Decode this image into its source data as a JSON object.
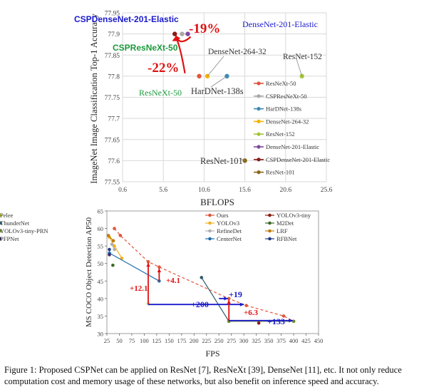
{
  "caption": "Figure 1: Proposed CSPNet can be applied on ResNet [7], ResNeXt [39], DenseNet [11], etc. It not only reduce computation cost and memory usage of these networks, but also benefit on inference speed and accuracy.",
  "chart_data": [
    {
      "type": "scatter",
      "title": "",
      "xlabel": "BFLOPS",
      "ylabel": "ImageNet Image Classification Top-1 Accuracy",
      "xlim": [
        0.6,
        25.6
      ],
      "ylim": [
        77.55,
        77.95
      ],
      "xticks": [
        "0.6",
        "5.6",
        "10.6",
        "15.6",
        "20.6",
        "25.6"
      ],
      "yticks": [
        "77.95",
        "77.9",
        "77.85",
        "77.8",
        "77.75",
        "77.7",
        "77.65",
        "77.6",
        "77.55"
      ],
      "grid": true,
      "legend_position": "right",
      "series": [
        {
          "name": "ResNeXt-50",
          "color": "#e0553b",
          "x": 10.0,
          "y": 77.8
        },
        {
          "name": "CSPResNeXt-50",
          "color": "#a8a8a8",
          "x": 7.9,
          "y": 77.9
        },
        {
          "name": "HarDNet-138s",
          "color": "#3b8bb5",
          "x": 13.4,
          "y": 77.8
        },
        {
          "name": "DenseNet-264-32",
          "color": "#f5b400",
          "x": 11.0,
          "y": 77.8
        },
        {
          "name": "ResNet-152",
          "color": "#a6c43a",
          "x": 22.6,
          "y": 77.8
        },
        {
          "name": "DenseNet-201-Elastic",
          "color": "#7d4aa3",
          "x": 8.6,
          "y": 77.9
        },
        {
          "name": "CSPDenseNet-201-Elastic",
          "color": "#8b1a1a",
          "x": 7.0,
          "y": 77.9
        },
        {
          "name": "ResNet-101",
          "color": "#8b6914",
          "x": 15.6,
          "y": 77.6
        }
      ],
      "annotations": [
        {
          "text": "CSPDenseNet-201-Elastic",
          "color": "#1a1acc"
        },
        {
          "text": "DenseNet-201-Elastic",
          "color": "#1a1acc"
        },
        {
          "text": "-19%",
          "color": "#e01010"
        },
        {
          "text": "CSPResNeXt-50",
          "color": "#1a9a3a"
        },
        {
          "text": "DenseNet-264-32",
          "color": "#333333"
        },
        {
          "text": "ResNet-152",
          "color": "#333333"
        },
        {
          "text": "-22%",
          "color": "#e01010"
        },
        {
          "text": "ResNeXt-50",
          "color": "#1a9a3a"
        },
        {
          "text": "HarDNet-138s",
          "color": "#333333"
        },
        {
          "text": "ResNet-101",
          "color": "#333333"
        }
      ]
    },
    {
      "type": "line",
      "title": "",
      "xlabel": "FPS",
      "ylabel": "MS COCO Object Detection AP50",
      "xlim": [
        25,
        450
      ],
      "ylim": [
        30,
        65
      ],
      "xticks": [
        "25",
        "50",
        "75",
        "100",
        "125",
        "150",
        "175",
        "200",
        "225",
        "250",
        "275",
        "300",
        "325",
        "350",
        "375",
        "400",
        "425",
        "450"
      ],
      "yticks": [
        "30",
        "35",
        "40",
        "45",
        "50",
        "55",
        "60",
        "65"
      ],
      "grid": false,
      "legend_position": "top",
      "series": [
        {
          "name": "Ours",
          "color": "#e0553b",
          "dash": true,
          "marker": "circle",
          "points": [
            [
              40,
              60.0
            ],
            [
              52,
              58.0
            ],
            [
              108,
              50.5
            ],
            [
              130,
              49.0
            ],
            [
              270,
              40.0
            ],
            [
              305,
              38.0
            ],
            [
              380,
              35.0
            ],
            [
              400,
              33.5
            ]
          ]
        },
        {
          "name": "YOLOv3",
          "color": "#f0b020",
          "marker": "circle",
          "points": [
            [
              30,
              57.5
            ],
            [
              40,
              55.0
            ],
            [
              55,
              51.5
            ]
          ]
        },
        {
          "name": "RefineDet",
          "color": "#b0b0b0",
          "marker": "circle",
          "points": [
            [
              35,
              55.5
            ],
            [
              40,
              54.0
            ]
          ]
        },
        {
          "name": "CenterNet",
          "color": "#1f6fb0",
          "marker": "circle",
          "points": [
            [
              30,
              53.0
            ],
            [
              130,
              45.0
            ]
          ]
        },
        {
          "name": "YOLOv3-tiny",
          "color": "#8a1a10",
          "marker": "circle",
          "points": [
            [
              330,
              33.0
            ]
          ]
        },
        {
          "name": "M2Det",
          "color": "#3a6a2a",
          "marker": "circle",
          "points": [
            [
              37,
              49.5
            ]
          ]
        },
        {
          "name": "LRF",
          "color": "#c07a10",
          "marker": "circle",
          "points": [
            [
              28,
              58.0
            ],
            [
              38,
              56.5
            ]
          ]
        },
        {
          "name": "RFBNet",
          "color": "#203a8a",
          "marker": "circle",
          "points": [
            [
              30,
              54.0
            ]
          ]
        },
        {
          "name": "Pelee",
          "color": "#c8d020",
          "marker": "circle",
          "points": [
            [
              108,
              38.5
            ]
          ]
        },
        {
          "name": "ThunderNet",
          "color": "#2a5a6a",
          "marker": "circle",
          "points": [
            [
              215,
              46.0
            ],
            [
              270,
              33.5
            ]
          ]
        },
        {
          "name": "YOLOv3-tiny-PRN",
          "color": "#6a8a2a",
          "marker": "circle",
          "points": [
            [
              270,
              33.5
            ],
            [
              400,
              33.5
            ]
          ]
        },
        {
          "name": "PFPNet",
          "color": "#3a2a6a",
          "marker": "circle",
          "points": [
            [
              30,
              52.5
            ]
          ]
        }
      ],
      "annotations": [
        {
          "text": "+12.1",
          "color": "#e01010"
        },
        {
          "text": "+4.1",
          "color": "#e01010"
        },
        {
          "text": "+19",
          "color": "#1a1acc"
        },
        {
          "text": "+200",
          "color": "#1a1acc"
        },
        {
          "text": "+6.3",
          "color": "#e01010"
        },
        {
          "text": "+133",
          "color": "#1a1acc"
        }
      ]
    }
  ]
}
